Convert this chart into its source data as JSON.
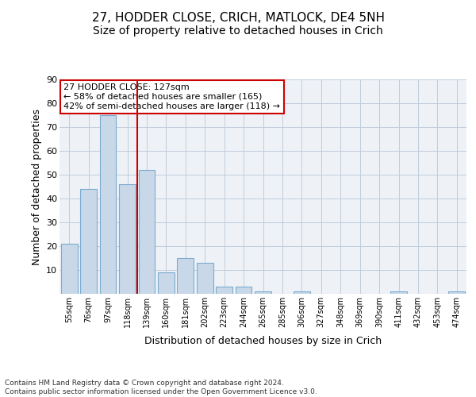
{
  "title1": "27, HODDER CLOSE, CRICH, MATLOCK, DE4 5NH",
  "title2": "Size of property relative to detached houses in Crich",
  "xlabel": "Distribution of detached houses by size in Crich",
  "ylabel": "Number of detached properties",
  "footer1": "Contains HM Land Registry data © Crown copyright and database right 2024.",
  "footer2": "Contains public sector information licensed under the Open Government Licence v3.0.",
  "categories": [
    "55sqm",
    "76sqm",
    "97sqm",
    "118sqm",
    "139sqm",
    "160sqm",
    "181sqm",
    "202sqm",
    "223sqm",
    "244sqm",
    "265sqm",
    "285sqm",
    "306sqm",
    "327sqm",
    "348sqm",
    "369sqm",
    "390sqm",
    "411sqm",
    "432sqm",
    "453sqm",
    "474sqm"
  ],
  "values": [
    21,
    44,
    75,
    46,
    52,
    9,
    15,
    13,
    3,
    3,
    1,
    0,
    1,
    0,
    0,
    0,
    0,
    1,
    0,
    0,
    1
  ],
  "bar_color": "#c8d8e8",
  "bar_edge_color": "#7aabcf",
  "vline_x": 3.5,
  "vline_color": "#cc0000",
  "annotation_line1": "27 HODDER CLOSE: 127sqm",
  "annotation_line2": "← 58% of detached houses are smaller (165)",
  "annotation_line3": "42% of semi-detached houses are larger (118) →",
  "annotation_box_color": "white",
  "annotation_box_edge": "#cc0000",
  "ylim": [
    0,
    90
  ],
  "yticks": [
    0,
    10,
    20,
    30,
    40,
    50,
    60,
    70,
    80,
    90
  ],
  "grid_color": "#c0ccda",
  "bg_color": "#eef2f7",
  "title1_fontsize": 11,
  "title2_fontsize": 10,
  "xlabel_fontsize": 9,
  "ylabel_fontsize": 9
}
